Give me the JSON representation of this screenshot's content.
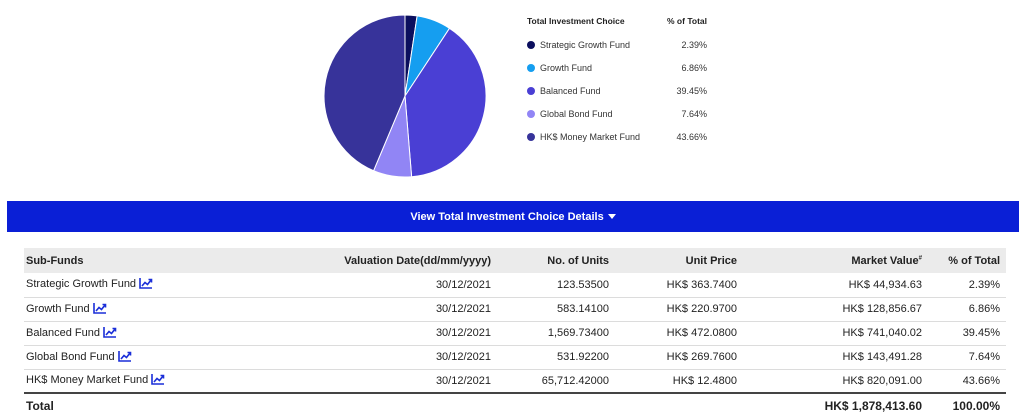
{
  "chart_data": {
    "type": "pie",
    "title": "",
    "legend_header": "Total Investment Choice",
    "legend_pct_header": "% of Total",
    "legend_position": "right",
    "slices": [
      {
        "name": "Strategic Growth Fund",
        "value": 2.39,
        "label": "2.39%",
        "color": "#0b0f5e"
      },
      {
        "name": "Growth Fund",
        "value": 6.86,
        "label": "6.86%",
        "color": "#159ef0"
      },
      {
        "name": "Balanced Fund",
        "value": 39.45,
        "label": "39.45%",
        "color": "#4a3fd4"
      },
      {
        "name": "Global Bond Fund",
        "value": 7.64,
        "label": "7.64%",
        "color": "#9185f5"
      },
      {
        "name": "HK$ Money Market Fund",
        "value": 43.66,
        "label": "43.66%",
        "color": "#37339a"
      }
    ]
  },
  "details_button": "View Total Investment Choice Details",
  "table": {
    "headers": {
      "sub_funds": "Sub-Funds",
      "valuation_date": "Valuation Date(dd/mm/yyyy)",
      "units": "No. of Units",
      "unit_price": "Unit Price",
      "market_value": "Market Value",
      "market_value_mark": "#",
      "pct": "% of Total"
    },
    "rows": [
      {
        "fund": "Strategic Growth Fund",
        "date": "30/12/2021",
        "units": "123.53500",
        "price": "HK$ 363.7400",
        "value": "HK$ 44,934.63",
        "pct": "2.39%"
      },
      {
        "fund": "Growth Fund",
        "date": "30/12/2021",
        "units": "583.14100",
        "price": "HK$ 220.9700",
        "value": "HK$ 128,856.67",
        "pct": "6.86%"
      },
      {
        "fund": "Balanced Fund",
        "date": "30/12/2021",
        "units": "1,569.73400",
        "price": "HK$ 472.0800",
        "value": "HK$ 741,040.02",
        "pct": "39.45%"
      },
      {
        "fund": "Global Bond Fund",
        "date": "30/12/2021",
        "units": "531.92200",
        "price": "HK$ 269.7600",
        "value": "HK$ 143,491.28",
        "pct": "7.64%"
      },
      {
        "fund": "HK$ Money Market Fund",
        "date": "30/12/2021",
        "units": "65,712.42000",
        "price": "HK$ 12.4800",
        "value": "HK$ 820,091.00",
        "pct": "43.66%"
      }
    ],
    "total": {
      "label": "Total",
      "value": "HK$ 1,878,413.60",
      "pct": "100.00%"
    }
  },
  "icons": {
    "trend": "trend-chart-icon",
    "caret": "caret-down-icon"
  },
  "colors": {
    "accent": "#0a1fd6",
    "icon": "#1a2ed8"
  }
}
